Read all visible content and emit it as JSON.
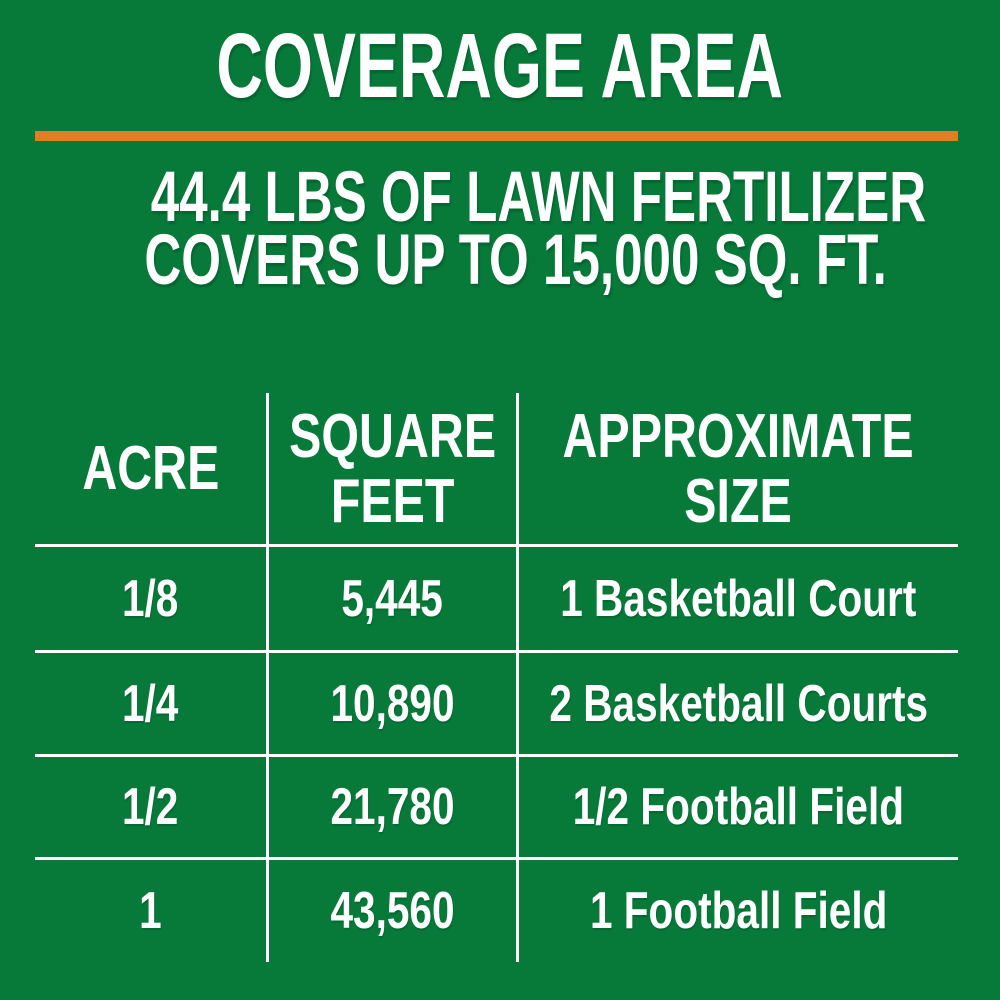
{
  "colors": {
    "background_green": "#077a3a",
    "divider_orange": "#e17d23",
    "text_white": "#ffffff",
    "rule_white": "#ffffff"
  },
  "header": {
    "title": "COVERAGE AREA"
  },
  "subtitle": {
    "line1": "44.4 LBS OF LAWN FERTILIZER",
    "line2": "COVERS UP TO 15,000 SQ. FT."
  },
  "table": {
    "headers": [
      {
        "lines": [
          "ACRE"
        ]
      },
      {
        "lines": [
          "SQUARE",
          "FEET"
        ]
      },
      {
        "lines": [
          "APPROXIMATE",
          "SIZE"
        ]
      }
    ],
    "rows": [
      {
        "acre": "1/8",
        "square_feet": "5,445",
        "approximate_size": "1 Basketball Court"
      },
      {
        "acre": "1/4",
        "square_feet": "10,890",
        "approximate_size": "2 Basketball Courts"
      },
      {
        "acre": "1/2",
        "square_feet": "21,780",
        "approximate_size": "1/2 Football Field"
      },
      {
        "acre": "1",
        "square_feet": "43,560",
        "approximate_size": "1 Football Field"
      }
    ]
  },
  "chart_data": {
    "type": "table",
    "title": "COVERAGE AREA",
    "subtitle": "44.4 LBS OF LAWN FERTILIZER COVERS UP TO 15,000 SQ. FT.",
    "columns": [
      "ACRE",
      "SQUARE FEET",
      "APPROXIMATE SIZE"
    ],
    "rows": [
      [
        "1/8",
        "5,445",
        "1 Basketball Court"
      ],
      [
        "1/4",
        "10,890",
        "2 Basketball Courts"
      ],
      [
        "1/2",
        "21,780",
        "1/2 Football Field"
      ],
      [
        "1",
        "43,560",
        "1 Football Field"
      ]
    ]
  }
}
